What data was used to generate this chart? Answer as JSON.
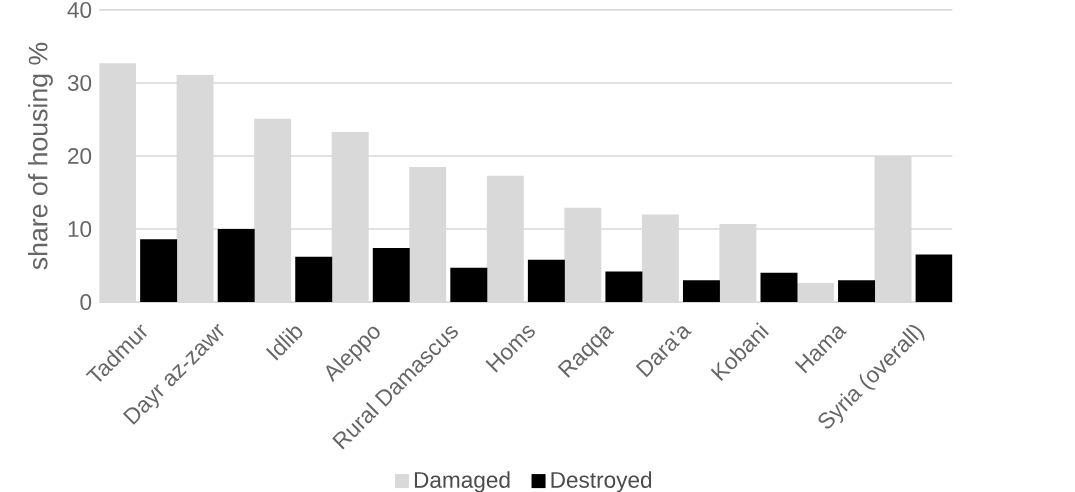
{
  "chart_data": {
    "type": "bar",
    "ylabel": "share of housing %",
    "categories": [
      "Tadmur",
      "Dayr az-zawr",
      "Idlib",
      "Aleppo",
      "Rural Damascus",
      "Homs",
      "Raqqa",
      "Dara'a",
      "Kobani",
      "Hama",
      "Syria (overall)"
    ],
    "series": [
      {
        "name": "Damaged",
        "color": "#d9d9d9",
        "values": [
          32.7,
          31.1,
          25.1,
          23.3,
          18.5,
          17.3,
          12.9,
          12.0,
          10.7,
          2.6,
          20.0
        ]
      },
      {
        "name": "Destroyed",
        "color": "#000000",
        "values": [
          8.6,
          10.0,
          6.2,
          7.4,
          4.7,
          5.8,
          4.2,
          3.0,
          4.0,
          3.0,
          6.5
        ]
      }
    ],
    "ylim": [
      0,
      40
    ],
    "yticks": [
      0,
      10,
      20,
      30,
      40
    ],
    "grid": "y",
    "legend": "bottom"
  }
}
